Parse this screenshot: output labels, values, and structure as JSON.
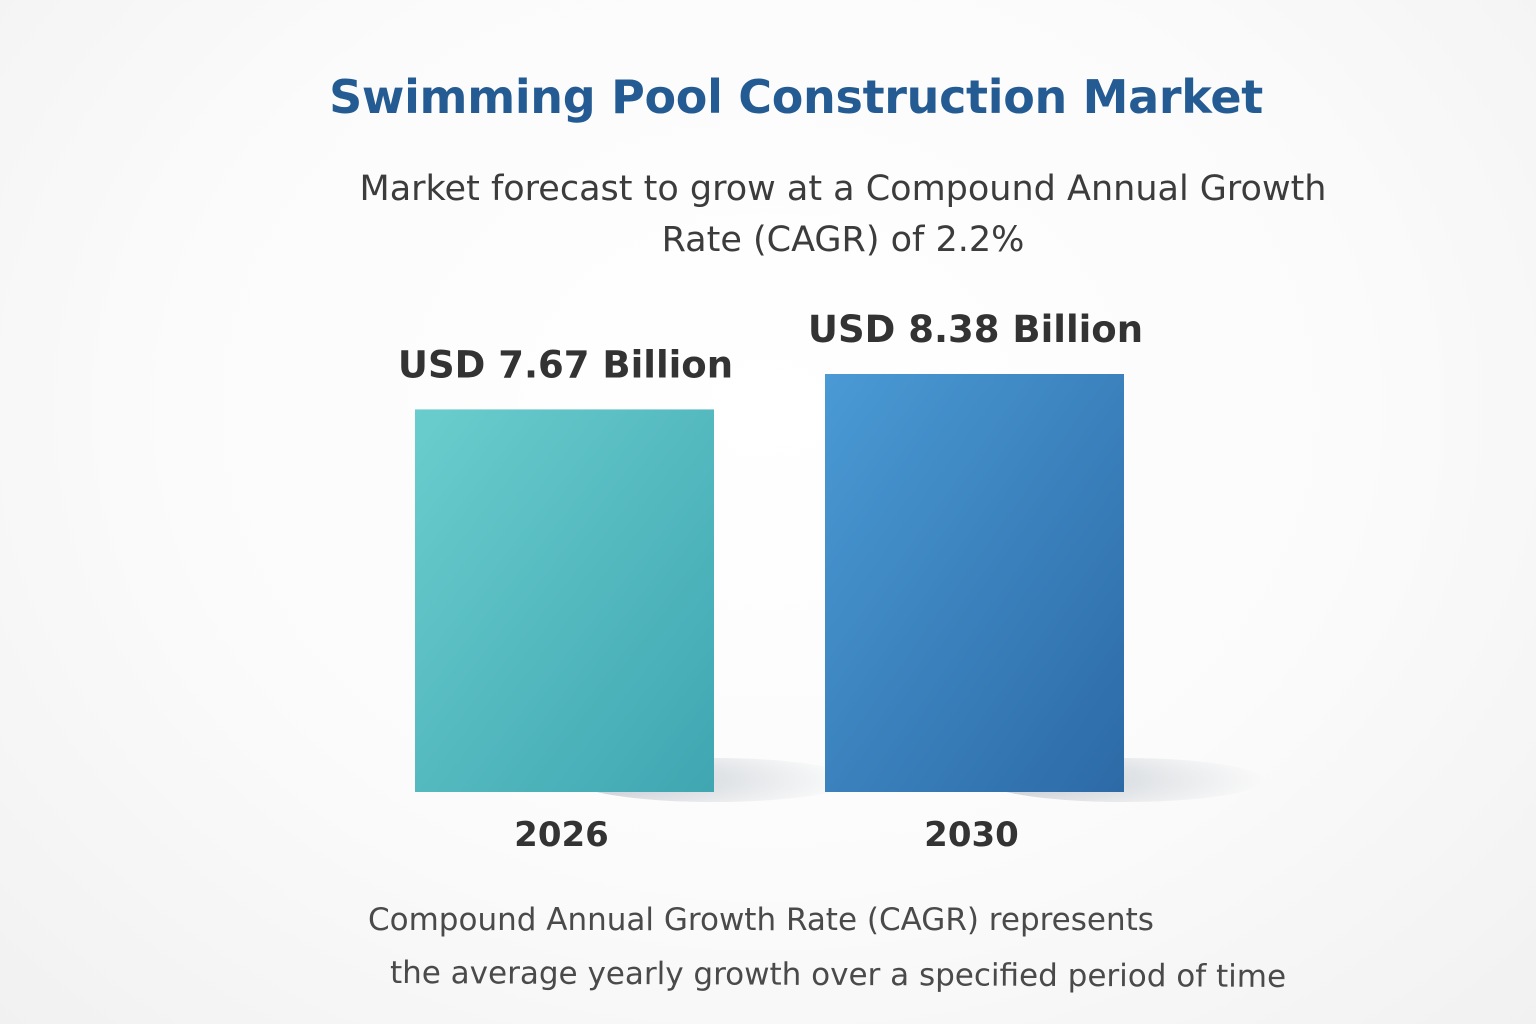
{
  "chart_data": {
    "type": "bar",
    "title": "Swimming Pool Construction Market",
    "subtitle": "Market forecast to grow at a Compound Annual Growth Rate (CAGR) of 2.2%",
    "categories": [
      "2026",
      "2030"
    ],
    "values": [
      7.67,
      8.38
    ],
    "data_labels": [
      "USD 7.67 Billion",
      "USD 8.38 Billion"
    ],
    "colors": [
      "#52bfc4",
      "#3f88c5"
    ],
    "xlabel": "",
    "ylabel": "",
    "grid": false,
    "legend": "none",
    "footnote": [
      "Compound Annual Growth Rate (CAGR) represents",
      "the average yearly growth over a specified period of time"
    ]
  }
}
